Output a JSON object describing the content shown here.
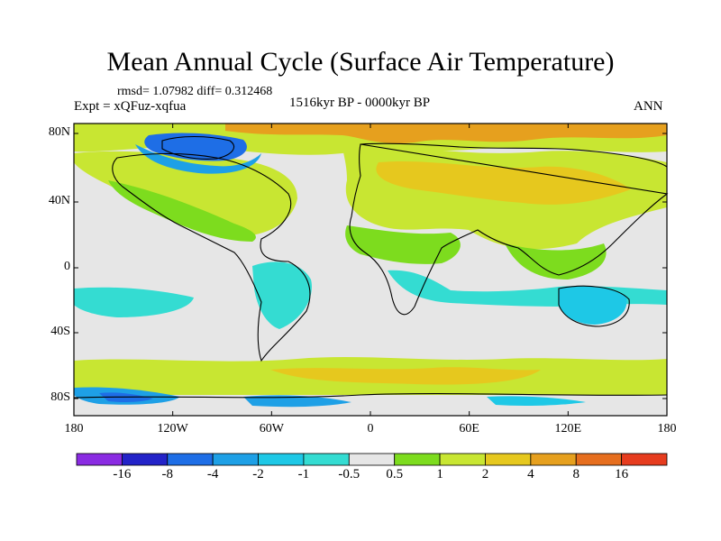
{
  "title": "Mean Annual Cycle (Surface Air Temperature)",
  "stats": "rmsd= 1.07982 diff= 0.312468",
  "experiment": "Expt = xQFuz-xqfua",
  "period": "1516kyr BP - 0000kyr BP",
  "season": "ANN",
  "lat_labels": [
    "80N",
    "40N",
    "0",
    "40S",
    "80S"
  ],
  "lon_labels": [
    "180",
    "120W",
    "60W",
    "0",
    "60E",
    "120E",
    "180"
  ],
  "colorbar": {
    "labels": [
      "-16",
      "-8",
      "-4",
      "-2",
      "-1",
      "-0.5",
      "0.5",
      "1",
      "2",
      "4",
      "8",
      "16"
    ],
    "colors": [
      "#8a2be2",
      "#2323c8",
      "#1e6ee6",
      "#1ea0e6",
      "#1ec8e6",
      "#34dcd2",
      "#e6e6e6",
      "#7ddc1e",
      "#c8e632",
      "#e6c81e",
      "#e6a01e",
      "#e66e1e",
      "#e63c1e"
    ]
  }
}
